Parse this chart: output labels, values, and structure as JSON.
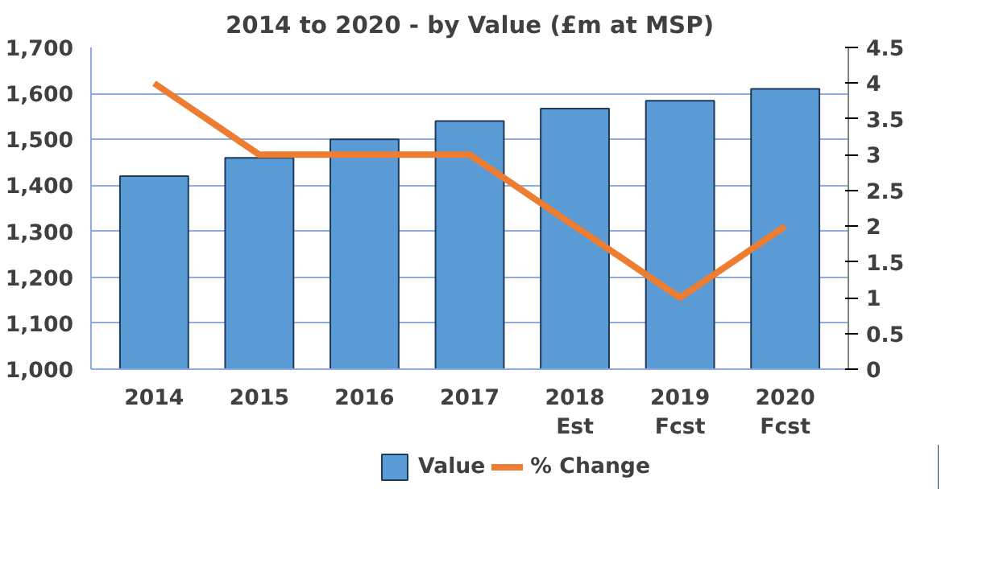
{
  "chart_data": {
    "type": "bar",
    "title": "2014 to 2020 - by Value (£m at MSP)",
    "categories": [
      "2014",
      "2015",
      "2016",
      "2017",
      "2018\nEst",
      "2019\nFcst",
      "2020\nFcst"
    ],
    "series": [
      {
        "name": "Value",
        "color": "#5b9bd5",
        "values": [
          1420,
          1460,
          1500,
          1540,
          1567,
          1584,
          1610
        ]
      },
      {
        "name": "% Change",
        "type": "line",
        "axis": "y2",
        "color": "#ed7d31",
        "values": [
          4,
          3,
          3,
          3,
          2,
          1,
          2
        ]
      }
    ],
    "ylim": [
      1000,
      1700
    ],
    "yticks": [
      {
        "value": 1000,
        "label": "1,000"
      },
      {
        "value": 1100,
        "label": "1,100"
      },
      {
        "value": 1200,
        "label": "1,200"
      },
      {
        "value": 1300,
        "label": "1,300"
      },
      {
        "value": 1400,
        "label": "1,400"
      },
      {
        "value": 1500,
        "label": "1,500"
      },
      {
        "value": 1600,
        "label": "1,600"
      },
      {
        "value": 1700,
        "label": "1,700"
      }
    ],
    "y2lim": [
      0,
      4.5
    ],
    "y2ticks": [
      0,
      0.5,
      1,
      1.5,
      2,
      2.5,
      3,
      3.5,
      4,
      4.5
    ],
    "grid": "y",
    "legend": "bottom"
  }
}
